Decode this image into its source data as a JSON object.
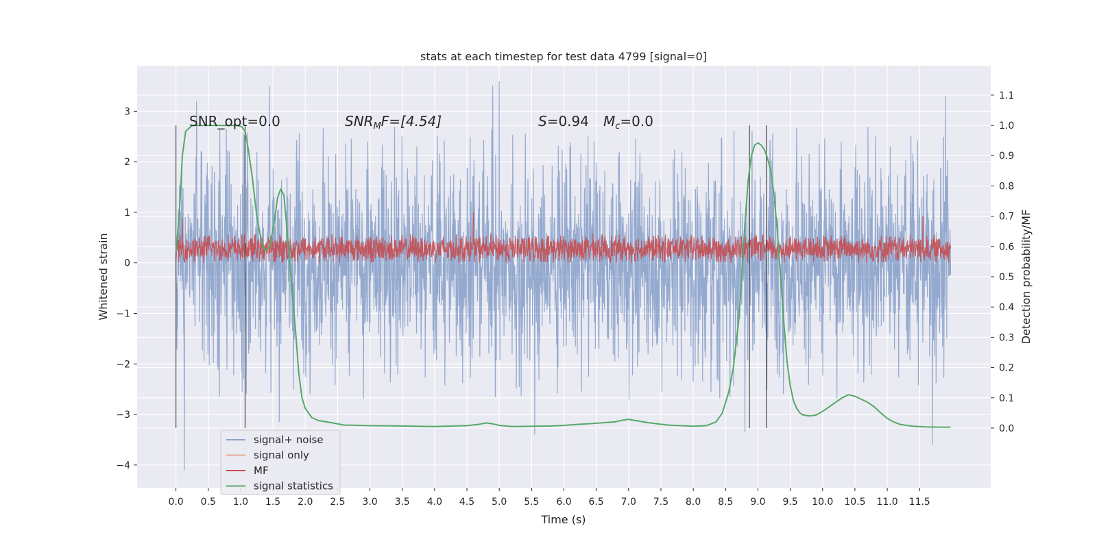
{
  "chart_data": {
    "type": "line",
    "title": "stats at each timestep for test data 4799 [signal=0]",
    "xlabel": "Time (s)",
    "ylabel": "Whitened strain",
    "y2label": "Detection probability/MF",
    "xlim": [
      -0.6,
      12.6
    ],
    "ylim": [
      -4.45,
      3.9
    ],
    "y2lim": [
      -0.197,
      1.197
    ],
    "x_ticks": [
      "0.0",
      "0.5",
      "1.0",
      "1.5",
      "2.0",
      "2.5",
      "3.0",
      "3.5",
      "4.0",
      "4.5",
      "5.0",
      "5.5",
      "6.0",
      "6.5",
      "7.0",
      "7.5",
      "8.0",
      "8.5",
      "9.0",
      "9.5",
      "10.0",
      "10.5",
      "11.0",
      "11.5"
    ],
    "y_ticks": [
      "3",
      "2",
      "1",
      "0",
      "−1",
      "−2",
      "−3",
      "−4"
    ],
    "y2_ticks": [
      "1.1",
      "1.0",
      "0.9",
      "0.8",
      "0.7",
      "0.6",
      "0.5",
      "0.4",
      "0.3",
      "0.2",
      "0.1",
      "0.0"
    ],
    "grid": true,
    "legend_position": "lower-left",
    "annotations": {
      "snr_opt": "SNR_opt=0.0",
      "snr_mf_sym": "SNR",
      "snr_mf_sub": "M",
      "snr_mf_rest": "F=[4.54]",
      "s_sym": "S",
      "s_val": "=0.94",
      "mc_sym": "M",
      "mc_sub": "c",
      "mc_val": "=0.0"
    },
    "vertical_markers": [
      0.0,
      1.07,
      8.87,
      9.13
    ],
    "series": [
      {
        "name": "signal+ noise",
        "color": "#4c72b0",
        "axis": "left",
        "generator": "noise",
        "x_range": [
          0.0,
          11.98
        ],
        "points": 2400,
        "envelope": [
          -2.7,
          2.7
        ],
        "extremes": [
          [
            0.13,
            -4.1
          ],
          [
            0.32,
            3.2
          ],
          [
            1.45,
            3.5
          ],
          [
            5.0,
            3.6
          ],
          [
            4.9,
            3.5
          ],
          [
            11.7,
            -3.6
          ],
          [
            11.9,
            3.3
          ],
          [
            5.55,
            -3.4
          ],
          [
            8.8,
            -3.35
          ],
          [
            1.6,
            -3.15
          ]
        ]
      },
      {
        "name": "signal only",
        "color": "#dd8452",
        "axis": "left",
        "values": []
      },
      {
        "name": "MF",
        "color": "#c44e52",
        "axis": "left",
        "generator": "mf",
        "x_range": [
          0.0,
          11.98
        ],
        "points": 2400,
        "baseline": 0.28,
        "spread": 0.32,
        "extremes": [
          [
            4.6,
            1.0
          ],
          [
            11.55,
            0.92
          ],
          [
            0.1,
            0.88
          ]
        ]
      },
      {
        "name": "signal statistics",
        "color": "#55a868",
        "axis": "right",
        "x": [
          0.0,
          0.05,
          0.1,
          0.15,
          0.25,
          0.4,
          0.6,
          0.8,
          0.95,
          1.02,
          1.07,
          1.12,
          1.18,
          1.25,
          1.32,
          1.38,
          1.45,
          1.52,
          1.57,
          1.62,
          1.67,
          1.72,
          1.78,
          1.85,
          1.9,
          1.95,
          2.0,
          2.1,
          2.2,
          2.4,
          2.6,
          3.0,
          3.5,
          4.0,
          4.5,
          4.7,
          4.8,
          4.9,
          5.0,
          5.2,
          5.5,
          5.8,
          6.0,
          6.2,
          6.5,
          6.8,
          6.9,
          7.0,
          7.1,
          7.3,
          7.6,
          8.0,
          8.2,
          8.35,
          8.45,
          8.55,
          8.62,
          8.7,
          8.75,
          8.8,
          8.85,
          8.9,
          8.95,
          9.0,
          9.05,
          9.1,
          9.15,
          9.2,
          9.25,
          9.3,
          9.35,
          9.4,
          9.45,
          9.5,
          9.55,
          9.6,
          9.65,
          9.7,
          9.8,
          9.9,
          10.0,
          10.1,
          10.2,
          10.3,
          10.4,
          10.5,
          10.6,
          10.7,
          10.8,
          10.9,
          11.0,
          11.1,
          11.2,
          11.4,
          11.6,
          11.8,
          11.98
        ],
        "values": [
          0.58,
          0.7,
          0.9,
          0.98,
          1.0,
          1.0,
          1.0,
          1.0,
          1.0,
          0.995,
          0.98,
          0.92,
          0.83,
          0.7,
          0.62,
          0.585,
          0.6,
          0.68,
          0.76,
          0.79,
          0.77,
          0.65,
          0.5,
          0.32,
          0.18,
          0.1,
          0.065,
          0.035,
          0.025,
          0.018,
          0.01,
          0.008,
          0.007,
          0.005,
          0.008,
          0.013,
          0.017,
          0.014,
          0.009,
          0.005,
          0.006,
          0.007,
          0.009,
          0.012,
          0.016,
          0.021,
          0.026,
          0.029,
          0.025,
          0.018,
          0.01,
          0.006,
          0.008,
          0.02,
          0.05,
          0.12,
          0.2,
          0.35,
          0.5,
          0.68,
          0.82,
          0.9,
          0.935,
          0.942,
          0.935,
          0.92,
          0.89,
          0.85,
          0.77,
          0.65,
          0.5,
          0.35,
          0.22,
          0.14,
          0.09,
          0.065,
          0.05,
          0.043,
          0.04,
          0.043,
          0.055,
          0.07,
          0.085,
          0.1,
          0.11,
          0.105,
          0.095,
          0.085,
          0.07,
          0.05,
          0.032,
          0.02,
          0.012,
          0.006,
          0.004,
          0.003,
          0.003
        ]
      }
    ]
  }
}
